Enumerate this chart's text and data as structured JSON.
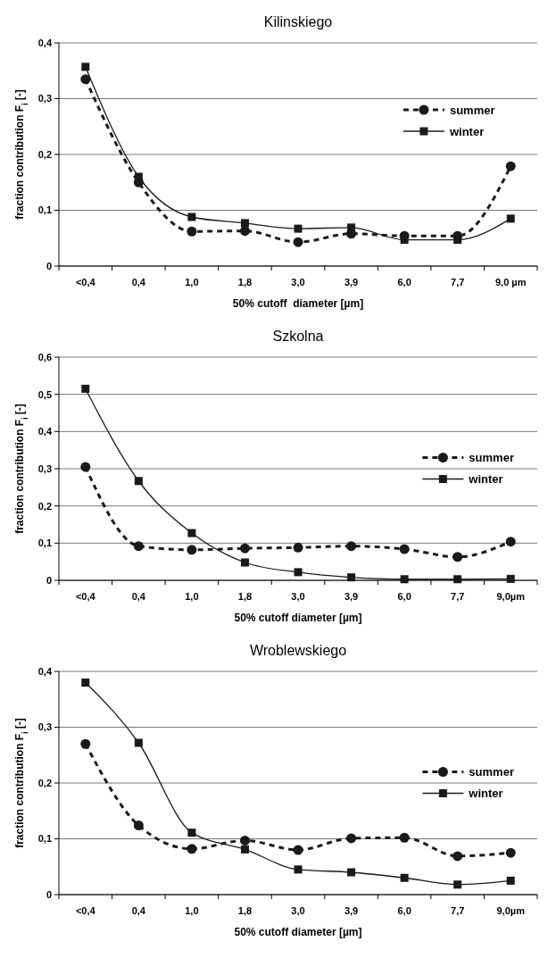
{
  "chart_data": [
    {
      "type": "line",
      "title": "Kilinskiego",
      "xlabel": "50% cutoff  diameter [µm]",
      "ylabel": "fraction contribution F$_{i}$ [-]",
      "categories": [
        "<0,4",
        "0,4",
        "1,0",
        "1,8",
        "3,0",
        "3,9",
        "6,0",
        "7,7",
        "9,0 µm"
      ],
      "ylim": [
        0,
        0.4
      ],
      "yticks": [
        {
          "value": 0,
          "label": "0"
        },
        {
          "value": 0.1,
          "label": "0,1"
        },
        {
          "value": 0.2,
          "label": "0,2"
        },
        {
          "value": 0.3,
          "label": "0,3"
        },
        {
          "value": 0.4,
          "label": "0,4"
        }
      ],
      "grid": "y",
      "legend": "top right",
      "series": [
        {
          "name": "summer",
          "color": "#1a1a1a",
          "marker": "circle",
          "line_style": "dashed",
          "values": [
            0.335,
            0.15,
            0.062,
            0.063,
            0.043,
            0.058,
            0.054,
            0.054,
            0.179
          ]
        },
        {
          "name": "winter",
          "color": "#1a1a1a",
          "marker": "square",
          "line_style": "solid",
          "values": [
            0.357,
            0.16,
            0.088,
            0.077,
            0.067,
            0.069,
            0.047,
            0.047,
            0.085
          ]
        }
      ]
    },
    {
      "type": "line",
      "title": "Szkolna",
      "xlabel": "50% cutoff diameter [µm]",
      "ylabel": "fraction contribution F$_{i}$ [-]",
      "categories": [
        "<0,4",
        "0,4",
        "1,0",
        "1,8",
        "3,0",
        "3,9",
        "6,0",
        "7,7",
        "9,0µm"
      ],
      "ylim": [
        0,
        0.6
      ],
      "yticks": [
        {
          "value": 0,
          "label": "0"
        },
        {
          "value": 0.1,
          "label": "0,1"
        },
        {
          "value": 0.2,
          "label": "0,2"
        },
        {
          "value": 0.3,
          "label": "0,3"
        },
        {
          "value": 0.4,
          "label": "0,4"
        },
        {
          "value": 0.5,
          "label": "0,5"
        },
        {
          "value": 0.6,
          "label": "0,6"
        }
      ],
      "grid": "y",
      "legend": "right",
      "series": [
        {
          "name": "summer",
          "color": "#1a1a1a",
          "marker": "circle",
          "line_style": "dashed",
          "values": [
            0.305,
            0.092,
            0.082,
            0.086,
            0.088,
            0.092,
            0.084,
            0.063,
            0.104
          ]
        },
        {
          "name": "winter",
          "color": "#1a1a1a",
          "marker": "square",
          "line_style": "solid",
          "values": [
            0.515,
            0.267,
            0.127,
            0.048,
            0.022,
            0.008,
            0.003,
            0.003,
            0.004
          ]
        }
      ]
    },
    {
      "type": "line",
      "title": "Wroblewskiego",
      "xlabel": "50% cutoff diameter [µm]",
      "ylabel": "fraction contribution F$_{i}$ [-]",
      "categories": [
        "<0,4",
        "0,4",
        "1,0",
        "1,8",
        "3,0",
        "3,9",
        "6,0",
        "7,7",
        "9,0µm"
      ],
      "ylim": [
        0,
        0.4
      ],
      "yticks": [
        {
          "value": 0,
          "label": "0"
        },
        {
          "value": 0.1,
          "label": "0,1"
        },
        {
          "value": 0.2,
          "label": "0,2"
        },
        {
          "value": 0.3,
          "label": "0,3"
        },
        {
          "value": 0.4,
          "label": "0,4"
        }
      ],
      "grid": "y",
      "legend": "right",
      "series": [
        {
          "name": "summer",
          "color": "#1a1a1a",
          "marker": "circle",
          "line_style": "dashed",
          "values": [
            0.27,
            0.124,
            0.082,
            0.097,
            0.08,
            0.101,
            0.102,
            0.069,
            0.075
          ]
        },
        {
          "name": "winter",
          "color": "#1a1a1a",
          "marker": "square",
          "line_style": "solid",
          "values": [
            0.38,
            0.272,
            0.111,
            0.081,
            0.045,
            0.04,
            0.03,
            0.018,
            0.025
          ]
        }
      ]
    }
  ]
}
